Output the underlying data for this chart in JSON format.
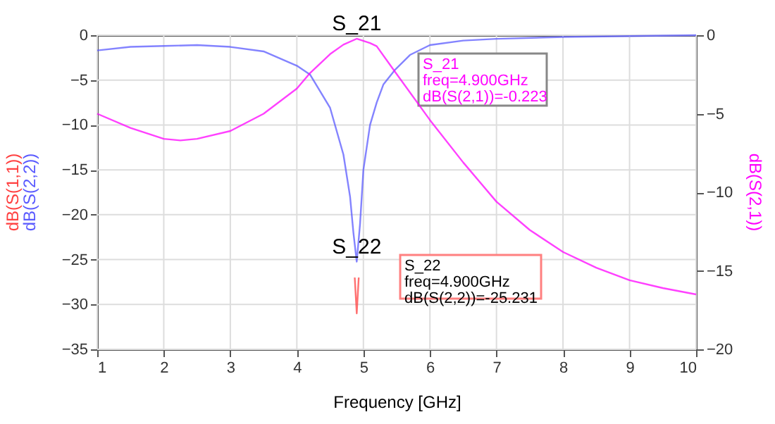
{
  "chart_data": {
    "type": "line",
    "xlabel": "Frequency [GHz]",
    "series": [
      {
        "name": "dB(S(1,1))",
        "color": "#ff4040",
        "x": [
          4.87,
          4.9,
          4.93
        ],
        "values": [
          -27,
          -31,
          -27
        ]
      },
      {
        "name": "dB(S(2,2))",
        "color": "#5a5aff",
        "x": [
          1,
          1.5,
          2,
          2.5,
          3,
          3.5,
          4,
          4.2,
          4.5,
          4.7,
          4.8,
          4.85,
          4.9,
          4.95,
          5.0,
          5.1,
          5.2,
          5.3,
          5.47,
          5.7,
          6,
          6.5,
          7,
          8,
          9,
          10
        ],
        "values": [
          -1.7,
          -1.3,
          -1.2,
          -1.1,
          -1.3,
          -1.8,
          -3.4,
          -4.4,
          -8.1,
          -13.3,
          -18,
          -22,
          -25.231,
          -21,
          -15,
          -10,
          -7.5,
          -5.5,
          -3.9,
          -2.2,
          -1.1,
          -0.6,
          -0.4,
          -0.2,
          -0.1,
          0
        ]
      },
      {
        "name": "dB(S(2,1))",
        "color": "#ff00ff",
        "axis": "y2",
        "x": [
          1,
          1.5,
          2,
          2.25,
          2.5,
          3,
          3.5,
          4,
          4.2,
          4.5,
          4.7,
          4.9,
          5.1,
          5.2,
          5.47,
          6,
          6.5,
          7,
          7.5,
          8,
          8.5,
          9,
          9.5,
          10
        ],
        "values": [
          -5.0,
          -5.9,
          -6.6,
          -6.7,
          -6.6,
          -6.1,
          -5.0,
          -3.4,
          -2.4,
          -1.2,
          -0.6,
          -0.223,
          -0.5,
          -0.7,
          -2.3,
          -5.4,
          -8.1,
          -10.6,
          -12.4,
          -13.8,
          -14.8,
          -15.6,
          -16.1,
          -16.5
        ]
      }
    ],
    "xlim": [
      1,
      10
    ],
    "xticks": [
      1,
      2,
      3,
      4,
      5,
      6,
      7,
      8,
      9,
      10
    ],
    "ylim": [
      -35,
      0
    ],
    "yticks": [
      -35,
      -30,
      -25,
      -20,
      -15,
      -10,
      -5,
      0
    ],
    "y2lim": [
      -20,
      0
    ],
    "y2ticks": [
      -20,
      -15,
      -10,
      -5,
      0
    ],
    "grid": true,
    "legend": false,
    "annotations": [
      {
        "text": "S_21",
        "x": 4.9,
        "y": -0.223
      },
      {
        "text": "S_22",
        "x": 4.9,
        "y": -25.231
      },
      "S_21\nfreq=4.900GHz\ndB(S(2,1))=-0.223",
      "S_22\nfreq=4.900GHz\ndB(S(2,2))=-25.231"
    ]
  }
}
